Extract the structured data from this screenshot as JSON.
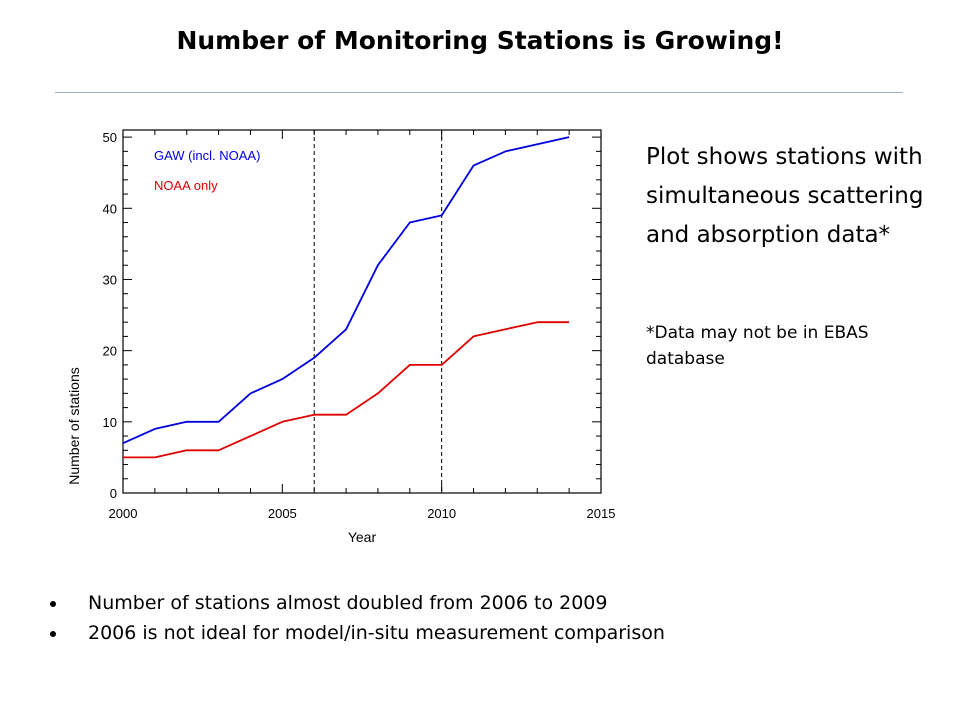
{
  "slide": {
    "title": "Number of Monitoring Stations is Growing!",
    "side_text": "Plot shows stations with simultaneous scattering and absorption data*",
    "side_note": "*Data may not be in EBAS database",
    "bullets": [
      "Number of stations almost doubled from 2006 to 2009",
      "2006 is not ideal for model/in-situ measurement comparison"
    ]
  },
  "chart_data": {
    "type": "line",
    "title": "",
    "xlabel": "Year",
    "ylabel": "Number of stations",
    "xlim": [
      2000,
      2015
    ],
    "ylim": [
      0,
      51
    ],
    "xticks": [
      2000,
      2005,
      2010,
      2015
    ],
    "yticks": [
      0,
      10,
      20,
      30,
      40,
      50
    ],
    "grid": false,
    "legend": "top-left",
    "reference_lines_x": [
      2006,
      2010
    ],
    "x": [
      2000,
      2001,
      2002,
      2003,
      2004,
      2005,
      2006,
      2007,
      2008,
      2009,
      2010,
      2011,
      2012,
      2013,
      2014
    ],
    "series": [
      {
        "name": "GAW (incl. NOAA)",
        "color": "#0000e0",
        "values": [
          7,
          9,
          10,
          10,
          14,
          16,
          19,
          23,
          32,
          38,
          39,
          46,
          48,
          49,
          50
        ]
      },
      {
        "name": "NOAA only",
        "color": "#e00000",
        "values": [
          5,
          5,
          6,
          6,
          8,
          10,
          11,
          11,
          14,
          18,
          18,
          22,
          23,
          24,
          24
        ]
      }
    ]
  }
}
